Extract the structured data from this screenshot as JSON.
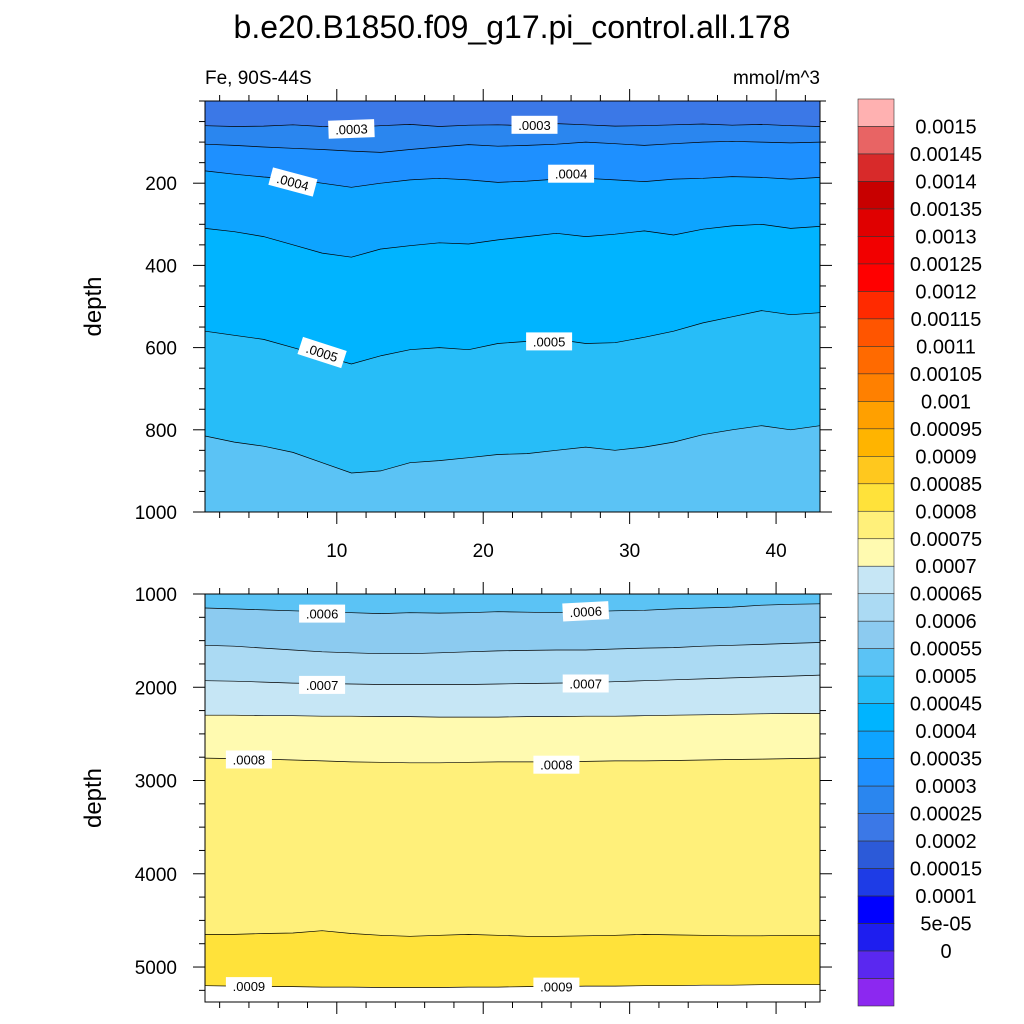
{
  "chart_data": {
    "type": "contour",
    "title": "b.e20.B1850.f09_g17.pi_control.all.178",
    "subtitle_left": "Fe, 90S-44S",
    "subtitle_right": "mmol/m^3",
    "x_range": [
      1,
      43
    ],
    "x_ticks": [
      10,
      20,
      30,
      40
    ],
    "x_tick_labels": [
      "10",
      "20",
      "30",
      "40"
    ],
    "panels": [
      {
        "ylabel": "depth",
        "y_range": [
          0,
          1000
        ],
        "y_ticks": [
          200,
          400,
          600,
          800,
          1000
        ],
        "y_tick_labels": [
          "200",
          "400",
          "600",
          "800",
          "1000"
        ],
        "show_x_labels": true,
        "bands": [
          {
            "value_range": [
              0.00025,
              0.0003
            ],
            "color": "#3b78e7"
          },
          {
            "value_range": [
              0.0003,
              0.00035
            ],
            "color": "#2a86ef"
          },
          {
            "value_range": [
              0.00035,
              0.0004
            ],
            "color": "#1e90ff"
          },
          {
            "value_range": [
              0.0004,
              0.00045
            ],
            "color": "#0ea4ff"
          },
          {
            "value_range": [
              0.00045,
              0.0005
            ],
            "color": "#00b4ff"
          },
          {
            "value_range": [
              0.0005,
              0.00055
            ],
            "color": "#27bdf8"
          },
          {
            "value_range": [
              0.00055,
              0.0006
            ],
            "color": "#5bc3f5"
          }
        ],
        "contours": [
          {
            "level": 0.0003,
            "depth": [
              60,
              62,
              61,
              58,
              62,
              64,
              60,
              57,
              62,
              59,
              58,
              60,
              55,
              58,
              61,
              60,
              58,
              56,
              59,
              57,
              60,
              62
            ]
          },
          {
            "level": 0.00035,
            "depth": [
              105,
              108,
              112,
              115,
              118,
              122,
              125,
              118,
              112,
              106,
              110,
              108,
              105,
              100,
              104,
              108,
              104,
              100,
              98,
              100,
              102,
              100
            ]
          },
          {
            "level": 0.0004,
            "depth": [
              170,
              178,
              185,
              190,
              200,
              210,
              200,
              192,
              188,
              192,
              198,
              195,
              190,
              188,
              192,
              196,
              190,
              188,
              184,
              186,
              190,
              186
            ]
          },
          {
            "level": 0.00045,
            "depth": [
              310,
              318,
              330,
              350,
              370,
              380,
              360,
              352,
              345,
              348,
              338,
              330,
              322,
              330,
              324,
              316,
              326,
              312,
              304,
              300,
              310,
              305
            ]
          },
          {
            "level": 0.0005,
            "depth": [
              560,
              570,
              580,
              600,
              620,
              640,
              620,
              605,
              600,
              605,
              590,
              585,
              580,
              590,
              588,
              575,
              560,
              540,
              525,
              510,
              520,
              515
            ]
          },
          {
            "level": 0.00055,
            "depth": [
              815,
              830,
              840,
              855,
              880,
              905,
              900,
              880,
              875,
              868,
              860,
              858,
              850,
              842,
              850,
              842,
              830,
              812,
              800,
              790,
              800,
              790
            ]
          }
        ],
        "contour_labels": [
          {
            "text": ".0003",
            "x": 11,
            "depth": 68,
            "angle": -2
          },
          {
            "text": ".0003",
            "x": 23.5,
            "depth": 58,
            "angle": 0
          },
          {
            "text": ".0004",
            "x": 7,
            "depth": 197,
            "angle": 15
          },
          {
            "text": ".0004",
            "x": 26,
            "depth": 177,
            "angle": 0
          },
          {
            "text": ".0005",
            "x": 9,
            "depth": 612,
            "angle": 18
          },
          {
            "text": ".0005",
            "x": 24.5,
            "depth": 585,
            "angle": 0
          }
        ]
      },
      {
        "ylabel": "depth",
        "y_range": [
          1000,
          5375
        ],
        "y_ticks": [
          1000,
          2000,
          3000,
          4000,
          5000
        ],
        "y_tick_labels": [
          "1000",
          "2000",
          "3000",
          "4000",
          "5000"
        ],
        "show_x_labels": false,
        "bands": [
          {
            "value_range": [
              0.00055,
              0.0006
            ],
            "color": "#5bc3f5"
          },
          {
            "value_range": [
              0.0006,
              0.00065
            ],
            "color": "#8ccbf0"
          },
          {
            "value_range": [
              0.00065,
              0.0007
            ],
            "color": "#abdaf3"
          },
          {
            "value_range": [
              0.0007,
              0.00075
            ],
            "color": "#c6e6f5"
          },
          {
            "value_range": [
              0.00075,
              0.0008
            ],
            "color": "#fffab0"
          },
          {
            "value_range": [
              0.0008,
              0.00085
            ],
            "color": "#fff07a"
          },
          {
            "value_range": [
              0.00085,
              0.0009
            ],
            "color": "#ffe23a"
          }
        ],
        "contours": [
          {
            "level": 0.0006,
            "depth": [
              1150,
              1160,
              1170,
              1180,
              1190,
              1200,
              1210,
              1200,
              1205,
              1200,
              1190,
              1195,
              1200,
              1190,
              1180,
              1175,
              1160,
              1150,
              1140,
              1120,
              1110,
              1105
            ]
          },
          {
            "level": 0.00065,
            "depth": [
              1550,
              1560,
              1580,
              1600,
              1620,
              1630,
              1640,
              1640,
              1630,
              1620,
              1610,
              1605,
              1600,
              1600,
              1590,
              1580,
              1575,
              1560,
              1550,
              1540,
              1530,
              1520
            ]
          },
          {
            "level": 0.0007,
            "depth": [
              1930,
              1935,
              1945,
              1955,
              1960,
              1965,
              1970,
              1970,
              1970,
              1970,
              1965,
              1960,
              1955,
              1950,
              1940,
              1930,
              1920,
              1910,
              1900,
              1890,
              1880,
              1870
            ]
          },
          {
            "level": 0.00075,
            "depth": [
              2300,
              2300,
              2305,
              2305,
              2310,
              2310,
              2315,
              2315,
              2320,
              2320,
              2320,
              2315,
              2315,
              2310,
              2310,
              2305,
              2300,
              2295,
              2290,
              2285,
              2280,
              2280
            ]
          },
          {
            "level": 0.0008,
            "depth": [
              2760,
              2765,
              2770,
              2780,
              2790,
              2800,
              2805,
              2810,
              2810,
              2805,
              2800,
              2800,
              2800,
              2795,
              2790,
              2790,
              2785,
              2780,
              2775,
              2770,
              2765,
              2760
            ]
          },
          {
            "level": 0.00085,
            "depth": [
              4650,
              4650,
              4640,
              4635,
              4610,
              4640,
              4660,
              4670,
              4660,
              4650,
              4660,
              4670,
              4670,
              4665,
              4660,
              4650,
              4655,
              4660,
              4665,
              4665,
              4660,
              4660
            ]
          },
          {
            "level": 0.0009,
            "depth": [
              5200,
              5205,
              5210,
              5210,
              5215,
              5215,
              5220,
              5220,
              5220,
              5215,
              5215,
              5210,
              5210,
              5205,
              5205,
              5200,
              5200,
              5195,
              5195,
              5190,
              5190,
              5190
            ]
          }
        ],
        "contour_labels": [
          {
            "text": ".0006",
            "x": 9,
            "depth": 1210,
            "angle": 0
          },
          {
            "text": ".0006",
            "x": 27,
            "depth": 1185,
            "angle": -3
          },
          {
            "text": ".0007",
            "x": 9,
            "depth": 1975,
            "angle": 0
          },
          {
            "text": ".0007",
            "x": 27,
            "depth": 1960,
            "angle": 0
          },
          {
            "text": ".0008",
            "x": 4,
            "depth": 2775,
            "angle": 0
          },
          {
            "text": ".0008",
            "x": 25,
            "depth": 2830,
            "angle": 0
          },
          {
            "text": ".0009",
            "x": 4,
            "depth": 5205,
            "angle": 0
          },
          {
            "text": ".0009",
            "x": 25,
            "depth": 5210,
            "angle": 0
          }
        ]
      }
    ],
    "colorbar": {
      "labels": [
        "0.0015",
        "0.00145",
        "0.0014",
        "0.00135",
        "0.0013",
        "0.00125",
        "0.0012",
        "0.00115",
        "0.0011",
        "0.00105",
        "0.001",
        "0.00095",
        "0.0009",
        "0.00085",
        "0.0008",
        "0.00075",
        "0.0007",
        "0.00065",
        "0.0006",
        "0.00055",
        "0.0005",
        "0.00045",
        "0.0004",
        "0.00035",
        "0.0003",
        "0.00025",
        "0.0002",
        "0.00015",
        "0.0001",
        "5e-05",
        "0"
      ],
      "colors": [
        "#ffb1b1",
        "#e86464",
        "#d82a2a",
        "#c80000",
        "#e00000",
        "#f20000",
        "#ff0000",
        "#ff2a00",
        "#ff5500",
        "#ff6a00",
        "#ff8000",
        "#ffa000",
        "#ffb400",
        "#ffc81e",
        "#ffe23a",
        "#fff07a",
        "#fffab0",
        "#c6e6f5",
        "#abdaf3",
        "#8ccbf0",
        "#5bc3f5",
        "#27bdf8",
        "#00b4ff",
        "#0ea4ff",
        "#1e90ff",
        "#2a86ef",
        "#3b78e7",
        "#2c5ad8",
        "#1e3ce6",
        "#0000ff",
        "#1e1eef",
        "#5a28f0",
        "#8c28f0"
      ]
    }
  }
}
